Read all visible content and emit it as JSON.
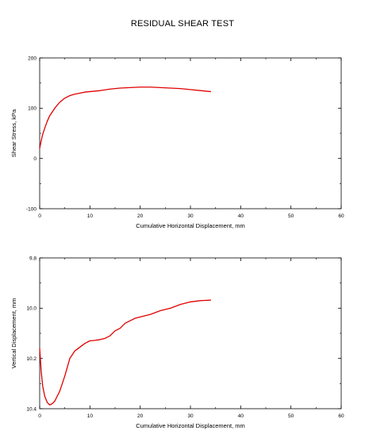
{
  "page_title": "RESIDUAL SHEAR TEST",
  "chart_data": [
    {
      "type": "line",
      "xlabel": "Cumulative Horizontal Displacement, mm",
      "ylabel": "Shear Stress, kPa",
      "xlim": [
        0,
        60
      ],
      "ylim": [
        -100,
        200
      ],
      "x_ticks": [
        "0",
        "10",
        "20",
        "30",
        "40",
        "50",
        "60"
      ],
      "y_ticks": [
        "-100",
        "0",
        "100",
        "200"
      ],
      "grid": false,
      "series": [
        {
          "color": "#e00000",
          "x": [
            0,
            0.3,
            0.6,
            1,
            1.5,
            2,
            3,
            4,
            5,
            6,
            7,
            8,
            9,
            10,
            12,
            14,
            16,
            18,
            20,
            22,
            24,
            26,
            28,
            30,
            32,
            34
          ],
          "y": [
            20,
            35,
            48,
            60,
            74,
            85,
            100,
            112,
            120,
            125,
            128,
            130,
            132,
            133,
            135,
            138,
            140,
            141,
            142,
            142,
            141,
            140,
            139,
            137,
            135,
            133
          ]
        }
      ]
    },
    {
      "type": "line",
      "xlabel": "Cumulative Horizontal Displacement, mm",
      "ylabel": "Vertical Displacement, mm",
      "xlim": [
        0,
        60
      ],
      "ylim": [
        10.4,
        9.8
      ],
      "y_inverted": true,
      "x_ticks": [
        "0",
        "10",
        "20",
        "30",
        "40",
        "50",
        "60"
      ],
      "y_ticks": [
        "9.8",
        "10.0",
        "10.2",
        "10.4"
      ],
      "grid": false,
      "series": [
        {
          "color": "#e00000",
          "x": [
            0,
            0.3,
            0.6,
            1,
            1.5,
            2,
            2.5,
            3,
            4,
            5,
            6,
            7,
            8,
            9,
            10,
            11,
            12,
            13,
            14,
            15,
            16,
            17,
            18,
            19,
            20,
            22,
            24,
            26,
            28,
            30,
            32,
            34
          ],
          "y": [
            10.16,
            10.25,
            10.31,
            10.35,
            10.375,
            10.385,
            10.38,
            10.37,
            10.33,
            10.27,
            10.2,
            10.17,
            10.155,
            10.14,
            10.13,
            10.128,
            10.125,
            10.12,
            10.11,
            10.09,
            10.08,
            10.06,
            10.05,
            10.04,
            10.035,
            10.025,
            10.01,
            10.0,
            9.985,
            9.975,
            9.97,
            9.968
          ]
        }
      ]
    }
  ]
}
